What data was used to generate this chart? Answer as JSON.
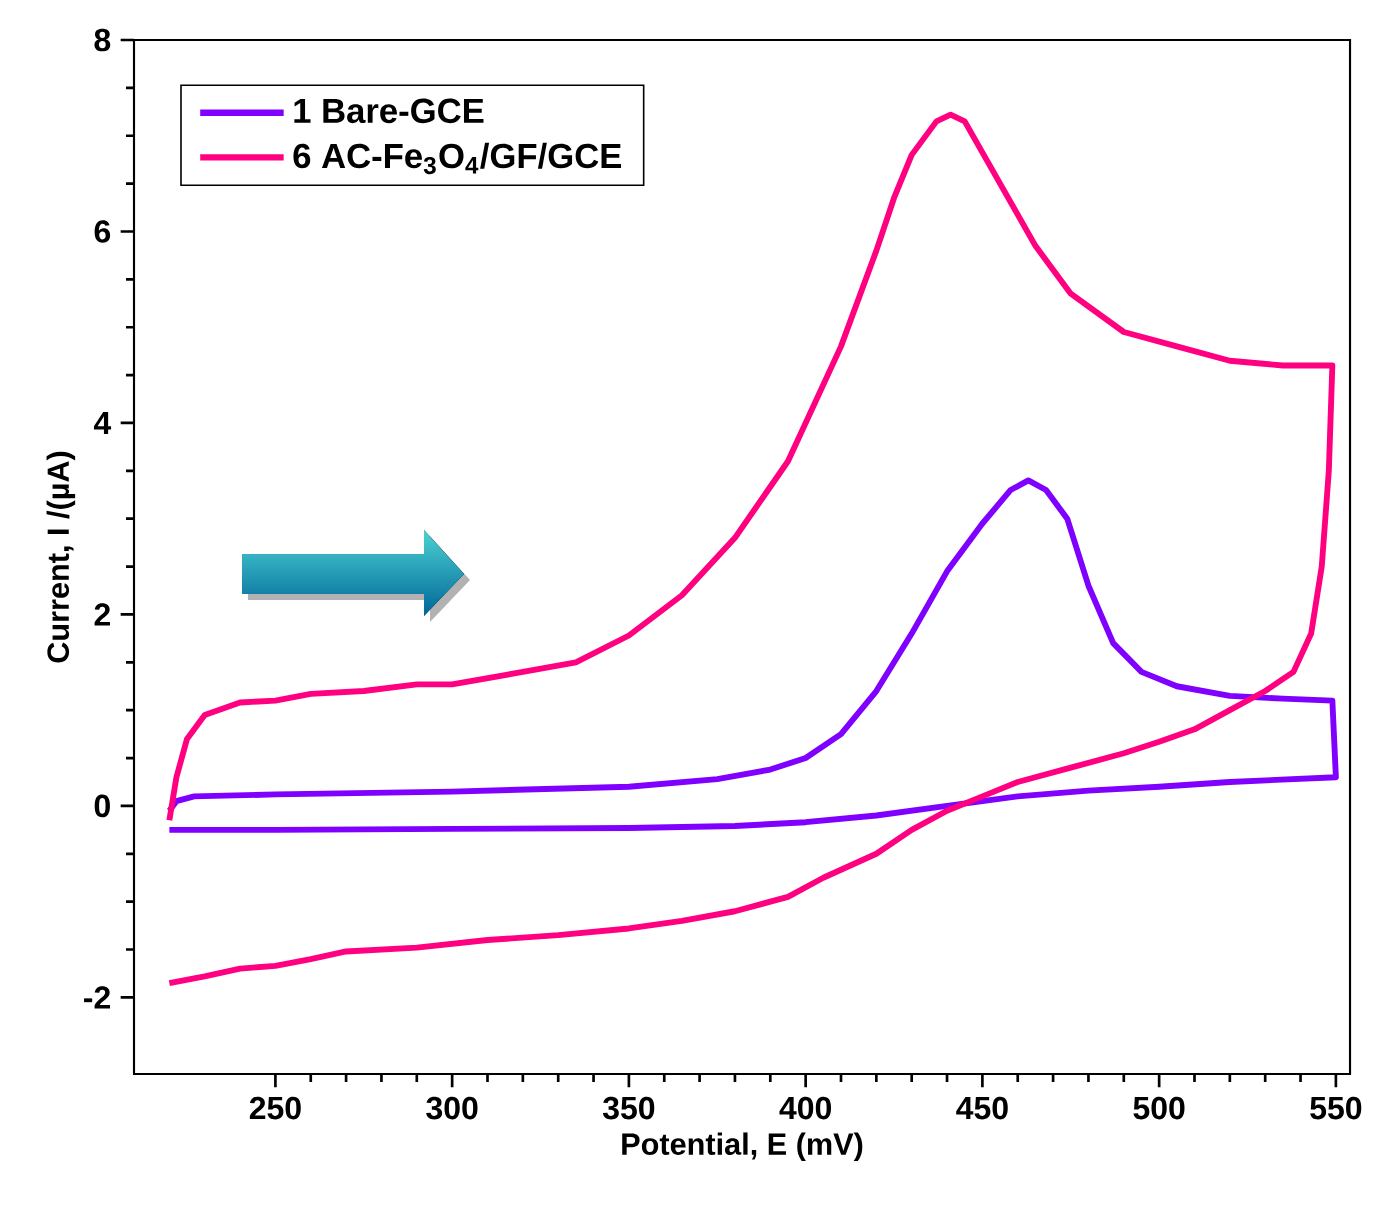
{
  "chart_data": {
    "type": "line",
    "xlabel": "Potential, E (mV)",
    "ylabel": "Current, I /(µA)",
    "xlim": [
      210,
      554
    ],
    "ylim": [
      -2.8,
      8
    ],
    "xticks": [
      250,
      300,
      350,
      400,
      450,
      500,
      550
    ],
    "yticks": [
      -2,
      0,
      2,
      4,
      6,
      8
    ],
    "legend": "top left",
    "marker": "none",
    "series": [
      {
        "name": "1 Bare-GCE",
        "color": "#7f00ff",
        "x": [
          220,
          222,
          227,
          250,
          300,
          350,
          375,
          390,
          400,
          410,
          420,
          430,
          440,
          450,
          458,
          463,
          468,
          474,
          480,
          487,
          495,
          505,
          520,
          535,
          549,
          550,
          520,
          500,
          480,
          460,
          450,
          440,
          420,
          400,
          380,
          350,
          300,
          250,
          220
        ],
        "values": [
          -0.05,
          0.05,
          0.1,
          0.12,
          0.15,
          0.2,
          0.28,
          0.38,
          0.5,
          0.75,
          1.2,
          1.8,
          2.45,
          2.95,
          3.3,
          3.4,
          3.3,
          3.0,
          2.3,
          1.7,
          1.4,
          1.25,
          1.15,
          1.12,
          1.1,
          0.3,
          0.25,
          0.2,
          0.16,
          0.1,
          0.05,
          0.0,
          -0.1,
          -0.17,
          -0.21,
          -0.23,
          -0.24,
          -0.25,
          -0.25
        ]
      },
      {
        "name": "6 AC-Fe$_{3}$O$_{4}$/GF/GCE",
        "color": "#ff0080",
        "x": [
          220,
          222,
          225,
          230,
          240,
          250,
          260,
          275,
          290,
          300,
          320,
          335,
          350,
          365,
          380,
          395,
          410,
          420,
          425,
          430,
          437,
          441,
          445,
          455,
          465,
          475,
          490,
          505,
          520,
          535,
          549,
          548,
          546,
          543,
          538,
          530,
          520,
          510,
          500,
          490,
          475,
          460,
          450,
          440,
          430,
          420,
          405,
          395,
          380,
          365,
          350,
          330,
          310,
          290,
          270,
          260,
          250,
          240,
          230,
          220
        ],
        "values": [
          -0.15,
          0.3,
          0.7,
          0.95,
          1.08,
          1.1,
          1.17,
          1.2,
          1.27,
          1.27,
          1.4,
          1.5,
          1.78,
          2.2,
          2.8,
          3.6,
          4.8,
          5.8,
          6.35,
          6.8,
          7.15,
          7.22,
          7.15,
          6.5,
          5.85,
          5.35,
          4.95,
          4.8,
          4.65,
          4.6,
          4.6,
          3.5,
          2.5,
          1.8,
          1.4,
          1.2,
          1.0,
          0.8,
          0.67,
          0.55,
          0.4,
          0.25,
          0.1,
          -0.05,
          -0.25,
          -0.5,
          -0.75,
          -0.95,
          -1.1,
          -1.2,
          -1.28,
          -1.35,
          -1.4,
          -1.48,
          -1.52,
          -1.6,
          -1.67,
          -1.7,
          -1.78,
          -1.85
        ]
      }
    ]
  }
}
